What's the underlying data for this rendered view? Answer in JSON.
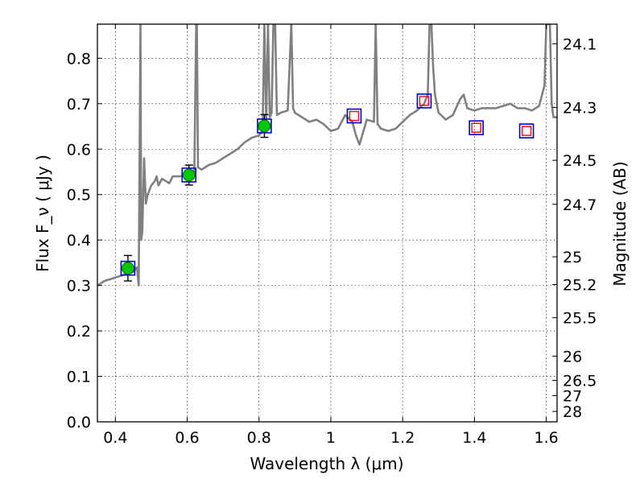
{
  "chart_data": {
    "type": "scatter",
    "xlabel": "Wavelength  λ (μm)",
    "ylabel": "Flux  F_ν  ( μJy )",
    "y2label": "Magnitude (AB)",
    "xlim": [
      0.35,
      1.63
    ],
    "ylim": [
      0.0,
      0.875
    ],
    "grid": true,
    "x_ticks": [
      0.4,
      0.6,
      0.8,
      1.0,
      1.2,
      1.4,
      1.6
    ],
    "x_tick_labels": [
      "0.4",
      "0.6",
      "0.8",
      "1",
      "1.2",
      "1.4",
      "1.6"
    ],
    "y_ticks": [
      0.0,
      0.1,
      0.2,
      0.3,
      0.4,
      0.5,
      0.6,
      0.7,
      0.8
    ],
    "y_tick_labels": [
      "0.0",
      "0.1",
      "0.2",
      "0.3",
      "0.4",
      "0.5",
      "0.6",
      "0.7",
      "0.8"
    ],
    "y2_ticks": [
      24.1,
      24.3,
      24.5,
      24.7,
      25,
      25.2,
      25.5,
      26,
      26.5,
      27,
      28
    ],
    "y2_tick_labels": [
      "24.1",
      "24.3",
      "24.5",
      "24.7",
      "25",
      "25.2",
      "25.5",
      "26",
      "26.5",
      "27",
      "28"
    ],
    "model_sed": {
      "color": "#808080",
      "x": [
        0.35,
        0.37,
        0.39,
        0.41,
        0.43,
        0.45,
        0.46,
        0.465,
        0.47,
        0.472,
        0.475,
        0.48,
        0.485,
        0.49,
        0.5,
        0.51,
        0.515,
        0.52,
        0.53,
        0.54,
        0.55,
        0.56,
        0.58,
        0.6,
        0.62,
        0.625,
        0.627,
        0.63,
        0.64,
        0.66,
        0.68,
        0.7,
        0.72,
        0.74,
        0.76,
        0.78,
        0.8,
        0.81,
        0.815,
        0.82,
        0.825,
        0.83,
        0.835,
        0.84,
        0.845,
        0.85,
        0.86,
        0.88,
        0.89,
        0.895,
        0.9,
        0.92,
        0.94,
        0.96,
        0.98,
        1.0,
        1.02,
        1.04,
        1.06,
        1.07,
        1.08,
        1.1,
        1.12,
        1.125,
        1.13,
        1.14,
        1.16,
        1.18,
        1.2,
        1.22,
        1.24,
        1.26,
        1.27,
        1.275,
        1.28,
        1.285,
        1.29,
        1.3,
        1.32,
        1.34,
        1.36,
        1.37,
        1.38,
        1.4,
        1.42,
        1.44,
        1.46,
        1.48,
        1.5,
        1.52,
        1.54,
        1.56,
        1.58,
        1.595,
        1.6,
        1.605,
        1.61,
        1.615,
        1.62,
        1.63
      ],
      "y": [
        0.3,
        0.31,
        0.315,
        0.32,
        0.325,
        0.33,
        0.34,
        0.3,
        0.875,
        0.4,
        0.42,
        0.58,
        0.48,
        0.5,
        0.52,
        0.53,
        0.54,
        0.52,
        0.535,
        0.53,
        0.525,
        0.54,
        0.54,
        0.545,
        0.55,
        0.875,
        0.875,
        0.56,
        0.555,
        0.565,
        0.57,
        0.58,
        0.59,
        0.6,
        0.615,
        0.625,
        0.63,
        0.64,
        0.875,
        0.66,
        0.875,
        0.67,
        0.68,
        0.875,
        0.875,
        0.675,
        0.68,
        0.685,
        0.875,
        0.69,
        0.68,
        0.67,
        0.66,
        0.665,
        0.655,
        0.64,
        0.645,
        0.675,
        0.66,
        0.63,
        0.61,
        0.665,
        0.66,
        0.875,
        0.655,
        0.645,
        0.64,
        0.645,
        0.66,
        0.675,
        0.685,
        0.7,
        0.72,
        0.875,
        0.875,
        0.78,
        0.72,
        0.68,
        0.665,
        0.675,
        0.71,
        0.72,
        0.69,
        0.685,
        0.69,
        0.69,
        0.69,
        0.695,
        0.7,
        0.69,
        0.69,
        0.685,
        0.695,
        0.74,
        0.875,
        0.875,
        0.875,
        0.7,
        0.67,
        0.67
      ]
    },
    "series": [
      {
        "marker": "filled-circle",
        "color": "#00c800",
        "x": [
          0.435,
          0.605,
          0.815
        ],
        "y": [
          0.338,
          0.543,
          0.651
        ],
        "yerr": [
          0.028,
          0.022,
          0.025
        ]
      },
      {
        "marker": "open-square",
        "color": "#0000cc",
        "x": [
          0.435,
          0.605,
          0.815,
          1.065,
          1.26,
          1.405,
          1.545
        ],
        "y": [
          0.338,
          0.543,
          0.651,
          0.673,
          0.706,
          0.647,
          0.64
        ]
      },
      {
        "marker": "open-square",
        "color": "#ff0000",
        "x": [
          1.065,
          1.26,
          1.405,
          1.545
        ],
        "y": [
          0.673,
          0.706,
          0.647,
          0.64
        ]
      }
    ]
  }
}
